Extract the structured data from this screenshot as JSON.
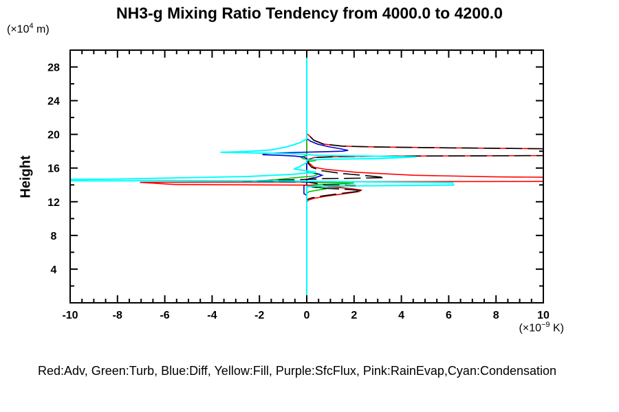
{
  "chart_data": {
    "type": "line",
    "title": "NH3-g Mixing Ratio Tendency from 4000.0 to 4200.0",
    "legend_text": "Red:Adv, Green:Turb, Blue:Diff, Yellow:Fill, Purple:SfcFlux, Pink:RainEvap,Cyan:Condensation",
    "x_axis": {
      "unit_prefix": "(×10",
      "unit_sup": "−9",
      "unit_suffix": " K)",
      "range": [
        -10,
        10
      ],
      "major_ticks": [
        -10,
        -8,
        -6,
        -4,
        -2,
        0,
        2,
        4,
        6,
        8,
        10
      ],
      "minor_step": 0.5
    },
    "y_axis": {
      "label": "Height",
      "unit_prefix": "(×10",
      "unit_sup": "4",
      "unit_suffix": " m)",
      "range": [
        0,
        30
      ],
      "major_ticks": [
        4,
        8,
        12,
        16,
        20,
        24,
        28
      ],
      "minor_step": 2
    },
    "grid": false,
    "frame_color": "#000000",
    "series": [
      {
        "name": "Fill",
        "color": "#ffff00",
        "points": [
          [
            0,
            30
          ],
          [
            0,
            0
          ]
        ]
      },
      {
        "name": "SfcFlux",
        "color": "#b000b0",
        "points": [
          [
            0,
            30
          ],
          [
            0,
            0
          ]
        ]
      },
      {
        "name": "RainEvap",
        "color": "#ff8cb4",
        "points": [
          [
            0,
            30
          ],
          [
            0,
            0
          ]
        ]
      },
      {
        "name": "Turb",
        "color": "#00c000",
        "points": [
          [
            0,
            30
          ],
          [
            0,
            17.5
          ],
          [
            -0.25,
            17.3
          ],
          [
            -0.15,
            17.1
          ],
          [
            0.25,
            17.0
          ],
          [
            0.4,
            16.9
          ],
          [
            0.1,
            16.8
          ],
          [
            0,
            16.6
          ],
          [
            0,
            15.5
          ],
          [
            0.5,
            15.3
          ],
          [
            0.3,
            15.05
          ],
          [
            -0.5,
            14.85
          ],
          [
            -1.2,
            14.65
          ],
          [
            -1.7,
            14.5
          ],
          [
            -1.0,
            14.43
          ],
          [
            -0.3,
            14.38
          ],
          [
            0.3,
            14.3
          ],
          [
            1.2,
            14.27
          ],
          [
            2.0,
            14.22
          ],
          [
            1.5,
            14.12
          ],
          [
            0.5,
            14.05
          ],
          [
            0,
            13.95
          ],
          [
            0.3,
            13.75
          ],
          [
            0.85,
            13.55
          ],
          [
            0.4,
            13.35
          ],
          [
            0.1,
            13.2
          ],
          [
            0,
            13.0
          ],
          [
            0,
            0
          ]
        ]
      },
      {
        "name": "Diff",
        "color": "#0000cd",
        "points": [
          [
            0,
            30
          ],
          [
            0,
            19.5
          ],
          [
            0.15,
            19.2
          ],
          [
            0.45,
            18.85
          ],
          [
            0.9,
            18.55
          ],
          [
            1.4,
            18.3
          ],
          [
            1.75,
            18.1
          ],
          [
            1.5,
            18.0
          ],
          [
            0.5,
            17.92
          ],
          [
            -0.5,
            17.85
          ],
          [
            -1.3,
            17.78
          ],
          [
            -1.85,
            17.7
          ],
          [
            -1.85,
            17.58
          ],
          [
            -1.2,
            17.52
          ],
          [
            -0.5,
            17.42
          ],
          [
            -0.1,
            17.3
          ],
          [
            0,
            17.1
          ],
          [
            0,
            15.7
          ],
          [
            0.3,
            15.45
          ],
          [
            0.65,
            15.15
          ],
          [
            0.4,
            14.9
          ],
          [
            0.1,
            14.75
          ],
          [
            0,
            14.6
          ],
          [
            0,
            14.0
          ],
          [
            -0.12,
            13.9
          ],
          [
            -0.12,
            12.95
          ],
          [
            0,
            12.75
          ],
          [
            0,
            0
          ]
        ]
      },
      {
        "name": "Adv",
        "color": "#ff0000",
        "points": [
          [
            0,
            30
          ],
          [
            0,
            20.1
          ],
          [
            0.12,
            19.8
          ],
          [
            0.3,
            19.3
          ],
          [
            0.7,
            18.85
          ],
          [
            1.5,
            18.6
          ],
          [
            3,
            18.5
          ],
          [
            6,
            18.4
          ],
          [
            10.5,
            18.28
          ],
          [
            13,
            18.22
          ],
          [
            13,
            17.5
          ],
          [
            4,
            17.42
          ],
          [
            1.2,
            17.35
          ],
          [
            0.3,
            17.25
          ],
          [
            0.08,
            17.0
          ],
          [
            0.05,
            16.7
          ],
          [
            0.1,
            16.6
          ],
          [
            0.3,
            16.1
          ],
          [
            0.8,
            15.85
          ],
          [
            2.1,
            15.5
          ],
          [
            4.5,
            15.15
          ],
          [
            8,
            14.95
          ],
          [
            13,
            14.85
          ],
          [
            13,
            14.42
          ],
          [
            2,
            14.38
          ],
          [
            0,
            14.35
          ],
          [
            -3,
            14.33
          ],
          [
            -7.05,
            14.3
          ],
          [
            -5.6,
            14.05
          ],
          [
            -2,
            14.0
          ],
          [
            0,
            13.97
          ],
          [
            0.4,
            13.9
          ],
          [
            1.2,
            13.72
          ],
          [
            1.9,
            13.55
          ],
          [
            2.3,
            13.38
          ],
          [
            2.2,
            13.2
          ],
          [
            1.6,
            12.95
          ],
          [
            0.8,
            12.65
          ],
          [
            0.3,
            12.4
          ],
          [
            0.08,
            12.2
          ],
          [
            0,
            12.0
          ],
          [
            0,
            0
          ]
        ]
      },
      {
        "name": "(unlabeled)",
        "color": "#000000",
        "dashed": true,
        "points": [
          [
            0,
            30
          ],
          [
            0,
            20.1
          ],
          [
            0.12,
            19.8
          ],
          [
            0.3,
            19.3
          ],
          [
            0.7,
            18.85
          ],
          [
            1.5,
            18.6
          ],
          [
            3,
            18.5
          ],
          [
            6,
            18.4
          ],
          [
            10.5,
            18.28
          ],
          [
            13,
            18.22
          ],
          [
            13,
            17.5
          ],
          [
            4,
            17.42
          ],
          [
            1.2,
            17.35
          ],
          [
            0.3,
            17.25
          ],
          [
            0.08,
            17.0
          ],
          [
            0.05,
            16.6
          ],
          [
            0.2,
            16.1
          ],
          [
            0.6,
            15.7
          ],
          [
            1.5,
            15.35
          ],
          [
            2.7,
            15.05
          ],
          [
            3.3,
            14.87
          ],
          [
            2.2,
            14.8
          ],
          [
            0.8,
            14.75
          ],
          [
            0,
            14.65
          ],
          [
            -1.5,
            14.55
          ],
          [
            -2.7,
            14.45
          ],
          [
            -1.5,
            14.4
          ],
          [
            0,
            14.35
          ],
          [
            0.8,
            14.0
          ],
          [
            2.05,
            13.95
          ],
          [
            2.05,
            13.85
          ],
          [
            0.8,
            13.8
          ],
          [
            0.2,
            13.75
          ],
          [
            0.8,
            13.6
          ],
          [
            1.6,
            13.48
          ],
          [
            2.35,
            13.33
          ],
          [
            2.2,
            13.25
          ],
          [
            1.5,
            13.0
          ],
          [
            0.7,
            12.7
          ],
          [
            0.2,
            12.45
          ],
          [
            0,
            12.25
          ],
          [
            0,
            0
          ]
        ]
      },
      {
        "name": "Condensation",
        "color": "#00ffff",
        "points": [
          [
            0,
            30
          ],
          [
            0,
            19.45
          ],
          [
            -0.3,
            19.0
          ],
          [
            -0.8,
            18.55
          ],
          [
            -1.5,
            18.15
          ],
          [
            -2.6,
            17.95
          ],
          [
            -3.65,
            17.87
          ],
          [
            -2.0,
            17.78
          ],
          [
            -0.6,
            17.7
          ],
          [
            0,
            17.62
          ],
          [
            0.5,
            17.5
          ],
          [
            2.5,
            17.42
          ],
          [
            4.6,
            17.32
          ],
          [
            3.0,
            17.12
          ],
          [
            0.8,
            17.05
          ],
          [
            0,
            16.95
          ],
          [
            0,
            16.65
          ],
          [
            -0.35,
            16.1
          ],
          [
            -0.55,
            15.9
          ],
          [
            0.4,
            15.5
          ],
          [
            -0.6,
            15.25
          ],
          [
            -2.5,
            15.0
          ],
          [
            -5,
            14.85
          ],
          [
            -8,
            14.7
          ],
          [
            -13,
            14.58
          ],
          [
            -13,
            14.47
          ],
          [
            -5,
            14.5
          ],
          [
            -1,
            14.47
          ],
          [
            0.5,
            14.42
          ],
          [
            3,
            14.35
          ],
          [
            6.15,
            14.27
          ],
          [
            6.2,
            13.98
          ],
          [
            3,
            13.9
          ],
          [
            0.5,
            13.86
          ],
          [
            0,
            13.78
          ],
          [
            0,
            0
          ]
        ]
      }
    ]
  }
}
